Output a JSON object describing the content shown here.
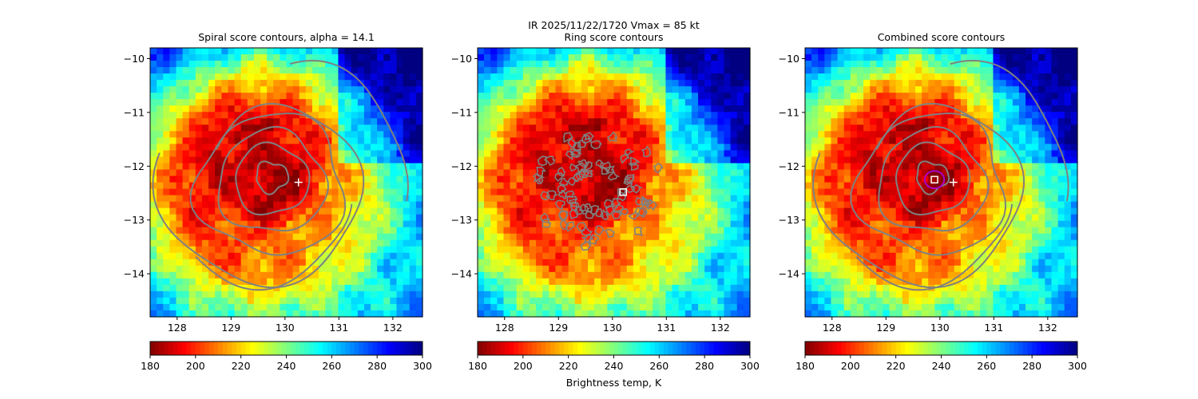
{
  "suptitle": "IR  2025/11/22/1720    Vmax = 85 kt",
  "colorbar_label": "Brightness temp, K",
  "colormap": "jet_r",
  "contour_color": "#808080",
  "chart_data": [
    {
      "type": "heatmap",
      "title": "Spiral score contours, alpha = 14.1",
      "xlim": [
        127.5,
        132.55
      ],
      "ylim": [
        -14.8,
        -9.8
      ],
      "xticks": [
        "128",
        "129",
        "130",
        "131",
        "132"
      ],
      "yticks": [
        "−10",
        "−11",
        "−12",
        "−13",
        "−14"
      ],
      "xtick_values": [
        128,
        129,
        130,
        131,
        132
      ],
      "ytick_values": [
        -10,
        -11,
        -12,
        -13,
        -14
      ],
      "contours": "spiral",
      "markers": [
        {
          "shape": "plus",
          "lon": 130.25,
          "lat": -12.3,
          "color": "#ffffff"
        }
      ],
      "colorbar": {
        "min": 180,
        "max": 300,
        "ticks": [
          "180",
          "200",
          "220",
          "240",
          "260",
          "280",
          "300"
        ]
      }
    },
    {
      "type": "heatmap",
      "title": "Ring score contours",
      "xlim": [
        127.5,
        132.55
      ],
      "ylim": [
        -14.8,
        -9.8
      ],
      "xticks": [
        "128",
        "129",
        "130",
        "131",
        "132"
      ],
      "yticks": [
        "−10",
        "−11",
        "−12",
        "−13",
        "−14"
      ],
      "xtick_values": [
        128,
        129,
        130,
        131,
        132
      ],
      "ytick_values": [
        -10,
        -11,
        -12,
        -13,
        -14
      ],
      "contours": "ring",
      "markers": [
        {
          "shape": "square",
          "lon": 130.2,
          "lat": -12.48,
          "color": "#ffffff"
        }
      ],
      "colorbar": {
        "min": 180,
        "max": 300,
        "ticks": [
          "180",
          "200",
          "220",
          "240",
          "260",
          "280",
          "300"
        ]
      }
    },
    {
      "type": "heatmap",
      "title": "Combined score contours",
      "xlim": [
        127.5,
        132.55
      ],
      "ylim": [
        -14.8,
        -9.8
      ],
      "xticks": [
        "128",
        "129",
        "130",
        "131",
        "132"
      ],
      "yticks": [
        "−10",
        "−11",
        "−12",
        "−13",
        "−14"
      ],
      "xtick_values": [
        128,
        129,
        130,
        131,
        132
      ],
      "ytick_values": [
        -10,
        -11,
        -12,
        -13,
        -14
      ],
      "contours": "combined",
      "markers": [
        {
          "shape": "plus",
          "lon": 130.25,
          "lat": -12.3,
          "color": "#ffffff"
        },
        {
          "shape": "square",
          "lon": 129.9,
          "lat": -12.25,
          "color": "#ffffff"
        },
        {
          "shape": "circle",
          "lon": 129.9,
          "lat": -12.25,
          "radius_deg": 0.18,
          "color": "#aa00cc"
        }
      ],
      "colorbar": {
        "min": 180,
        "max": 300,
        "ticks": [
          "180",
          "200",
          "220",
          "240",
          "260",
          "280",
          "300"
        ]
      }
    }
  ]
}
